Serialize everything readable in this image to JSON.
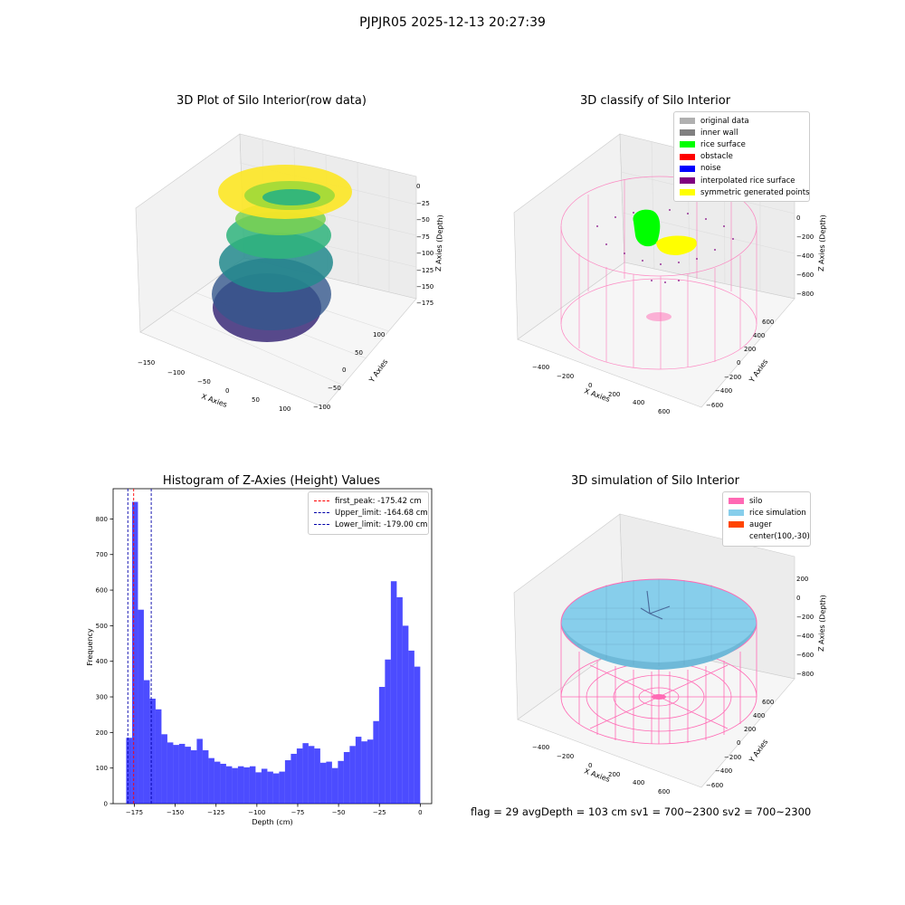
{
  "suptitle": "PJPJR05 2025-12-13 20:27:39",
  "panels": {
    "raw": {
      "title": "3D Plot of Silo Interior(row data)",
      "xlabel": "X Axies",
      "ylabel": "Y Axies",
      "zlabel": "Z Axies (Depth)",
      "xticks": [
        "−150",
        "−100",
        "−50",
        "0",
        "50",
        "100"
      ],
      "yticks": [
        "100",
        "50",
        "0",
        "−50",
        "−100"
      ],
      "zticks": [
        "0",
        "−25",
        "−50",
        "−75",
        "−100",
        "−125",
        "−150",
        "−175"
      ]
    },
    "classify": {
      "title": "3D classify of Silo Interior",
      "xlabel": "X Axies",
      "ylabel": "Y Axies",
      "zlabel": "Z Axies (Depth)",
      "xticks": [
        "−400",
        "−200",
        "0",
        "200",
        "400",
        "600"
      ],
      "yticks": [
        "600",
        "400",
        "200",
        "0",
        "−200",
        "−400",
        "−600"
      ],
      "zticks": [
        "200",
        "0",
        "−200",
        "−400",
        "−600",
        "−800"
      ],
      "legend": [
        {
          "label": "original data",
          "color": "#b0b0b0"
        },
        {
          "label": "inner wall",
          "color": "#808080"
        },
        {
          "label": "rice surface",
          "color": "#00ff00"
        },
        {
          "label": "obstacle",
          "color": "#ff0000"
        },
        {
          "label": "noise",
          "color": "#0000ff"
        },
        {
          "label": "interpolated rice surface",
          "color": "#800080"
        },
        {
          "label": "symmetric generated points",
          "color": "#ffff00"
        }
      ]
    },
    "simulation": {
      "title": "3D simulation of Silo Interior",
      "xlabel": "X Axies",
      "ylabel": "Y Axies",
      "zlabel": "Z Axies (Depth)",
      "xticks": [
        "−400",
        "−200",
        "0",
        "200",
        "400",
        "600"
      ],
      "yticks": [
        "600",
        "400",
        "200",
        "0",
        "−200",
        "−400",
        "−600"
      ],
      "zticks": [
        "200",
        "0",
        "−200",
        "−400",
        "−600",
        "−800"
      ],
      "legend": [
        {
          "label": "silo",
          "color": "#ff69b4"
        },
        {
          "label": "rice simulation",
          "color": "#87ceeb"
        },
        {
          "label": "auger",
          "color": "#ff4500"
        },
        {
          "label": "center(100,-30)",
          "color": ""
        }
      ]
    }
  },
  "bottom_text": "flag = 29  avgDepth = 103 cm  sv1 = 700~2300  sv2 = 700~2300",
  "chart_data": [
    {
      "type": "bar",
      "title": "Histogram of Z-Axies (Height) Values",
      "xlabel": "Depth (cm)",
      "ylabel": "Frequency",
      "xlim": [
        -188,
        7
      ],
      "ylim": [
        0,
        885
      ],
      "bin_start": -180,
      "bin_width": 3.6,
      "values": [
        185,
        848,
        545,
        347,
        295,
        265,
        195,
        172,
        165,
        168,
        160,
        150,
        182,
        150,
        128,
        118,
        112,
        105,
        100,
        105,
        102,
        105,
        88,
        98,
        90,
        85,
        90,
        122,
        140,
        155,
        170,
        162,
        155,
        115,
        118,
        100,
        120,
        145,
        162,
        188,
        175,
        180,
        232,
        328,
        405,
        625,
        580,
        500,
        430,
        385
      ],
      "xticks": [
        -175,
        -150,
        -125,
        -100,
        -75,
        -50,
        -25,
        0
      ],
      "xtick_labels": [
        "−175",
        "−150",
        "−125",
        "−100",
        "−75",
        "−50",
        "−25",
        "0"
      ],
      "yticks": [
        0,
        100,
        200,
        300,
        400,
        500,
        600,
        700,
        800
      ],
      "bar_color": "#0000ff",
      "vlines": [
        {
          "x": -175.42,
          "color": "#ff0000",
          "label": "first_peak: -175.42 cm"
        },
        {
          "x": -164.68,
          "color": "#0000aa",
          "label": "Upper_limit: -164.68 cm"
        },
        {
          "x": -179.0,
          "color": "#0000aa",
          "label": "Lower_limit: -179.00 cm"
        }
      ],
      "legend_position": "top-right"
    }
  ]
}
